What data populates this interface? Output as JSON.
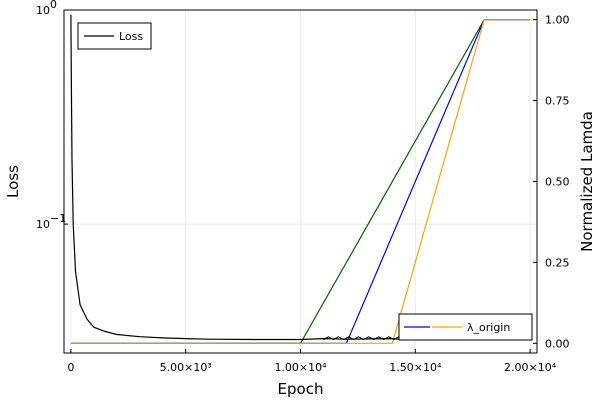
{
  "chart_data": {
    "type": "line",
    "xlabel": "Epoch",
    "ylabel_left": "Loss",
    "ylabel_right": "Normalized Lamda",
    "left_scale": "log",
    "x_ticks": [
      {
        "value": 0,
        "label": "0"
      },
      {
        "value": 5000,
        "label": "5.00×10³"
      },
      {
        "value": 10000,
        "label": "1.00×10⁴"
      },
      {
        "value": 15000,
        "label": "1.50×10⁴"
      },
      {
        "value": 20000,
        "label": "2.00×10⁴"
      }
    ],
    "xlim": [
      -300,
      20300
    ],
    "ylim_left": [
      0.025,
      1.0
    ],
    "yticks_left": [
      {
        "value": 1.0,
        "label": "10",
        "exp": "0"
      },
      {
        "value": 0.1,
        "label": "10",
        "exp": "−1"
      }
    ],
    "ylim_right": [
      -0.03,
      1.03
    ],
    "yticks_right": [
      {
        "value": 0.0,
        "label": "0.00"
      },
      {
        "value": 0.25,
        "label": "0.25"
      },
      {
        "value": 0.5,
        "label": "0.50"
      },
      {
        "value": 0.75,
        "label": "0.75"
      },
      {
        "value": 1.0,
        "label": "1.00"
      }
    ],
    "grid": true,
    "legend_left": {
      "position": "top-left",
      "entries": [
        {
          "label": "Loss",
          "color": "#000000"
        }
      ]
    },
    "legend_right": {
      "position": "bottom-right",
      "entries": [
        {
          "label": "",
          "color": "#0000ff"
        },
        {
          "label": "λ_origin",
          "color": "#ffa500"
        }
      ]
    },
    "loss_series": {
      "name": "Loss",
      "axis": "left",
      "color": "#000000",
      "points": [
        [
          0,
          0.95
        ],
        [
          20,
          0.5
        ],
        [
          50,
          0.2
        ],
        [
          100,
          0.1
        ],
        [
          200,
          0.06
        ],
        [
          400,
          0.042
        ],
        [
          700,
          0.036
        ],
        [
          1000,
          0.033
        ],
        [
          1500,
          0.0315
        ],
        [
          2000,
          0.0305
        ],
        [
          3000,
          0.0298
        ],
        [
          4000,
          0.0294
        ],
        [
          5000,
          0.0292
        ],
        [
          6000,
          0.029
        ],
        [
          8000,
          0.0289
        ],
        [
          10000,
          0.0289
        ],
        [
          11000,
          0.0292
        ],
        [
          12000,
          0.029
        ],
        [
          13000,
          0.0291
        ],
        [
          14000,
          0.0292
        ],
        [
          14500,
          0.0289
        ],
        [
          18000,
          0.0289
        ],
        [
          20000,
          0.0289
        ]
      ]
    },
    "lambda_series": [
      {
        "name": "",
        "axis": "right",
        "color": "#006400",
        "points": [
          [
            0,
            0.0
          ],
          [
            10000,
            0.0
          ],
          [
            18000,
            1.0
          ],
          [
            20000,
            1.0
          ]
        ]
      },
      {
        "name": "",
        "axis": "right",
        "color": "#0000ff",
        "points": [
          [
            0,
            0.0
          ],
          [
            12000,
            0.0
          ],
          [
            18000,
            1.0
          ],
          [
            20000,
            1.0
          ]
        ]
      },
      {
        "name": "λ_origin",
        "axis": "right",
        "color": "#ffa500",
        "points": [
          [
            0,
            0.0
          ],
          [
            14000,
            0.0
          ],
          [
            18000,
            1.0
          ],
          [
            20000,
            1.0
          ]
        ]
      }
    ]
  }
}
